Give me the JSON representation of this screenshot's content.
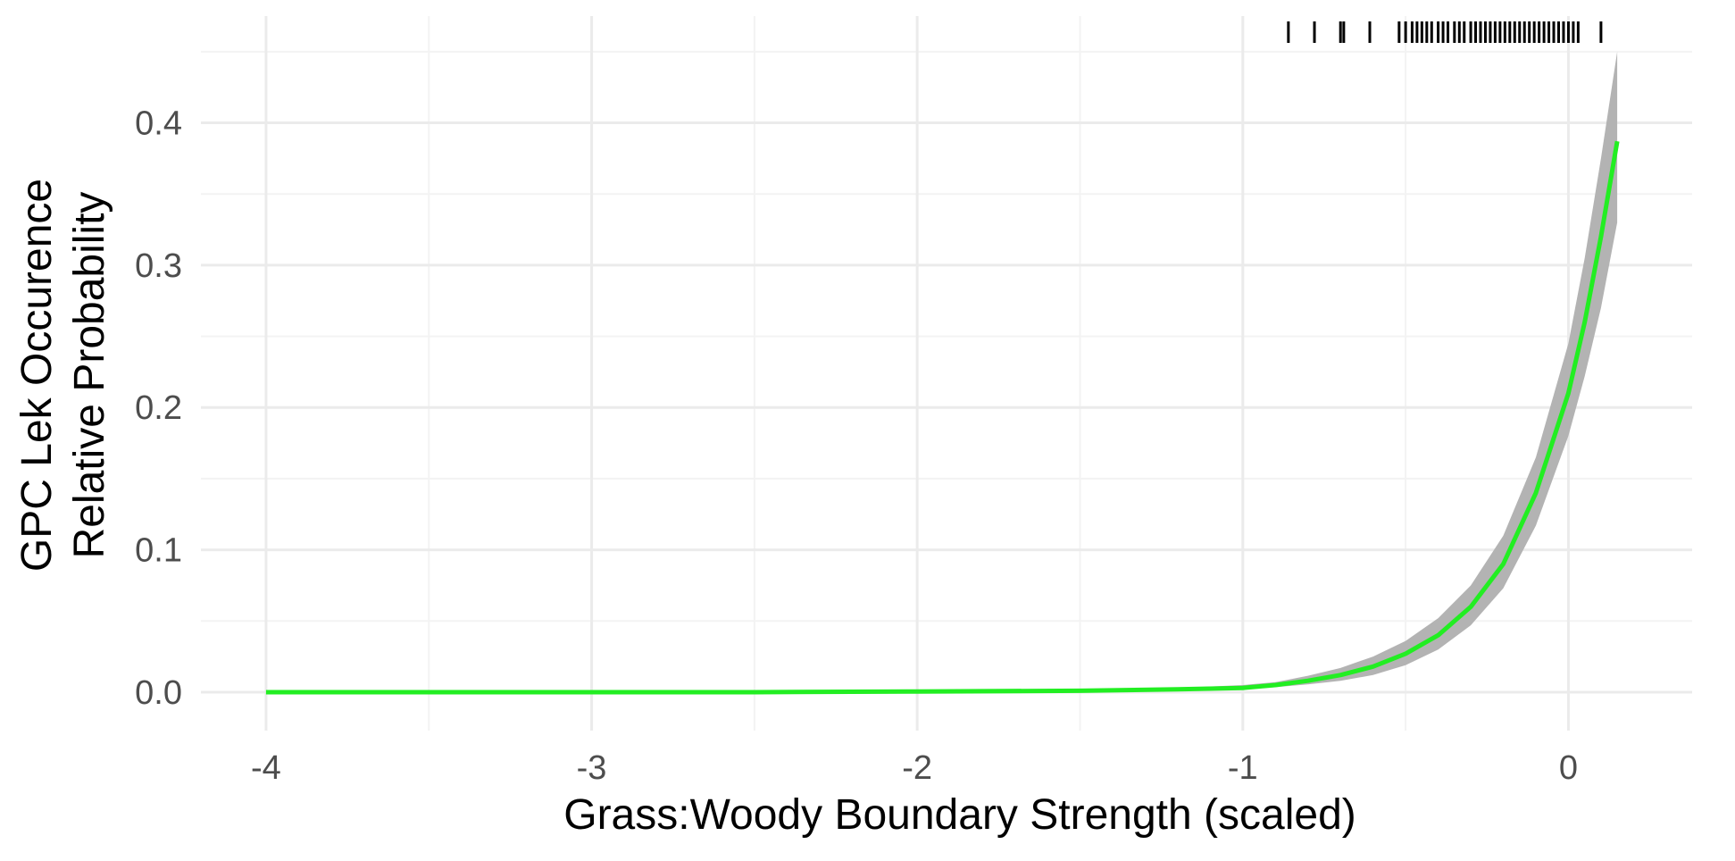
{
  "chart_data": {
    "type": "line",
    "title": "",
    "xlabel": "Grass:Woody Boundary Strength (scaled)",
    "ylabel_lines": [
      "GPC Lek Occurence",
      "Relative Probability"
    ],
    "xlim": [
      -4.2,
      0.38
    ],
    "ylim": [
      -0.027,
      0.475
    ],
    "x_ticks": [
      -4,
      -3,
      -2,
      -1,
      0
    ],
    "x_tick_labels": [
      "-4",
      "-3",
      "-2",
      "-1",
      "0"
    ],
    "y_ticks": [
      0.0,
      0.1,
      0.2,
      0.3,
      0.4
    ],
    "y_tick_labels": [
      "0.0",
      "0.1",
      "0.2",
      "0.3",
      "0.4"
    ],
    "grid": true,
    "colors": {
      "line": "#22ee22",
      "ribbon": "#b3b3b3",
      "rug": "#000000",
      "grid_major": "#ebebeb",
      "grid_minor": "#f3f3f3"
    },
    "series": [
      {
        "x": [
          -4.0,
          -3.5,
          -3.0,
          -2.5,
          -2.0,
          -1.5,
          -1.2,
          -1.0,
          -0.9,
          -0.8,
          -0.7,
          -0.6,
          -0.5,
          -0.4,
          -0.3,
          -0.2,
          -0.1,
          0.0,
          0.05,
          0.1,
          0.15
        ],
        "y": [
          0.0,
          0.0,
          0.0,
          0.0,
          0.0005,
          0.001,
          0.002,
          0.003,
          0.005,
          0.008,
          0.012,
          0.018,
          0.027,
          0.04,
          0.06,
          0.09,
          0.14,
          0.21,
          0.26,
          0.32,
          0.387
        ],
        "lower": [
          0.0,
          0.0,
          0.0,
          0.0,
          0.0003,
          0.0006,
          0.0013,
          0.002,
          0.0035,
          0.0055,
          0.008,
          0.012,
          0.019,
          0.03,
          0.047,
          0.073,
          0.117,
          0.18,
          0.222,
          0.27,
          0.33
        ],
        "upper": [
          0.0,
          0.0,
          0.0,
          0.0,
          0.0008,
          0.0015,
          0.003,
          0.005,
          0.007,
          0.0115,
          0.017,
          0.025,
          0.036,
          0.052,
          0.075,
          0.11,
          0.165,
          0.245,
          0.305,
          0.375,
          0.45
        ]
      }
    ],
    "rug_x": [
      -0.86,
      -0.78,
      -0.7,
      -0.69,
      -0.61,
      -0.52,
      -0.5,
      -0.48,
      -0.465,
      -0.45,
      -0.435,
      -0.42,
      -0.4,
      -0.385,
      -0.37,
      -0.35,
      -0.335,
      -0.32,
      -0.3,
      -0.285,
      -0.27,
      -0.255,
      -0.24,
      -0.225,
      -0.21,
      -0.195,
      -0.18,
      -0.165,
      -0.15,
      -0.135,
      -0.12,
      -0.105,
      -0.09,
      -0.075,
      -0.06,
      -0.045,
      -0.03,
      -0.015,
      0.0,
      0.015,
      0.03,
      0.1
    ]
  }
}
